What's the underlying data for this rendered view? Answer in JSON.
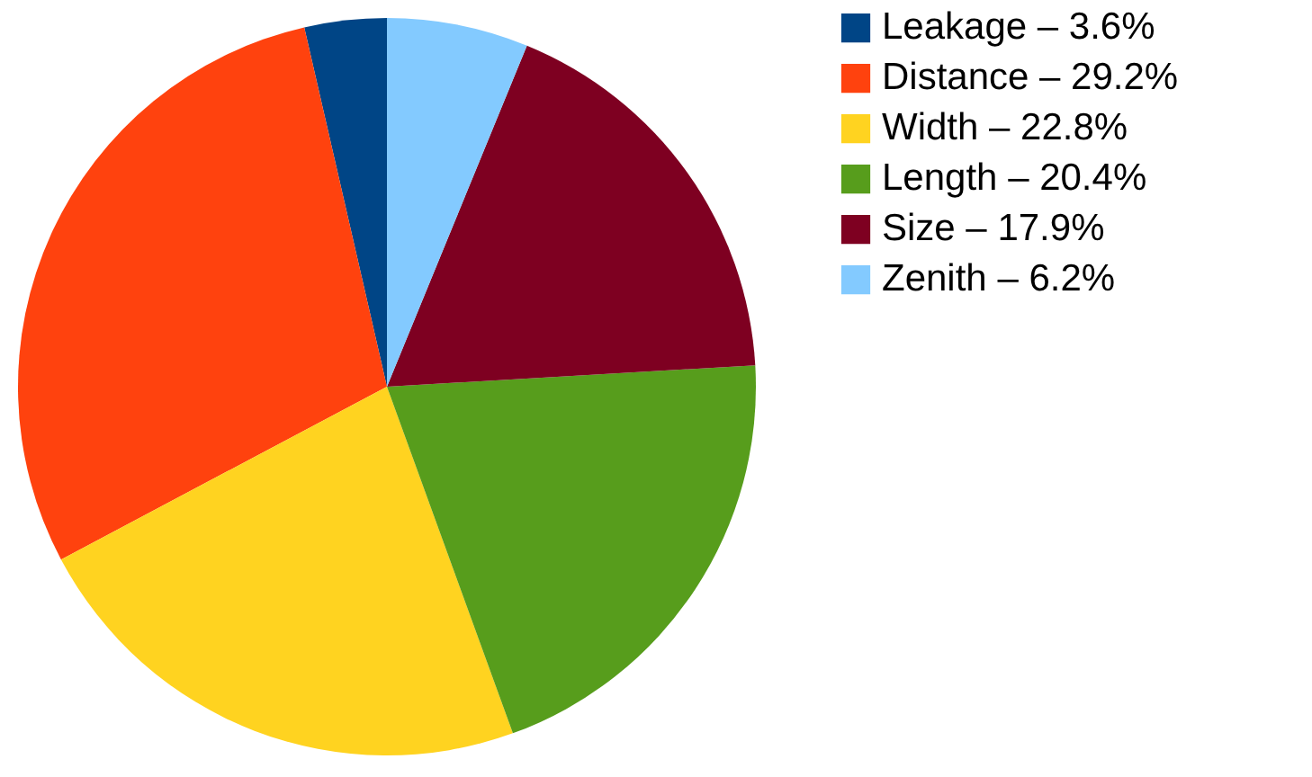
{
  "chart_data": {
    "type": "pie",
    "categories": [
      "Leakage – 3.6%",
      "Distance – 29.2%",
      "Width – 22.8%",
      "Length – 20.4%",
      "Size – 17.9%",
      "Zenith – 6.2%"
    ],
    "values": [
      3.6,
      29.2,
      22.8,
      20.4,
      17.9,
      6.2
    ],
    "colors": [
      "#004586",
      "#ff420e",
      "#ffd320",
      "#579d1c",
      "#7e0021",
      "#83caff"
    ],
    "legend": "right"
  }
}
